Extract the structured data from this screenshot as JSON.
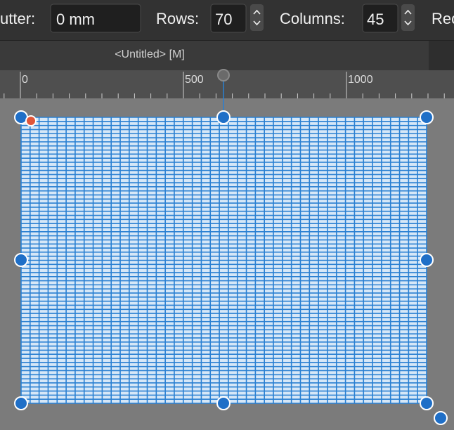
{
  "toolbar": {
    "gutter_label": "utter:",
    "gutter_value": "0 mm",
    "rows_label": "Rows:",
    "rows": 70,
    "columns_label": "Columns:",
    "columns": 45,
    "cut_label": "Rec"
  },
  "tab": {
    "title": "<Untitled> [M]"
  },
  "ruler": {
    "labels": [
      0,
      500,
      1000
    ]
  }
}
